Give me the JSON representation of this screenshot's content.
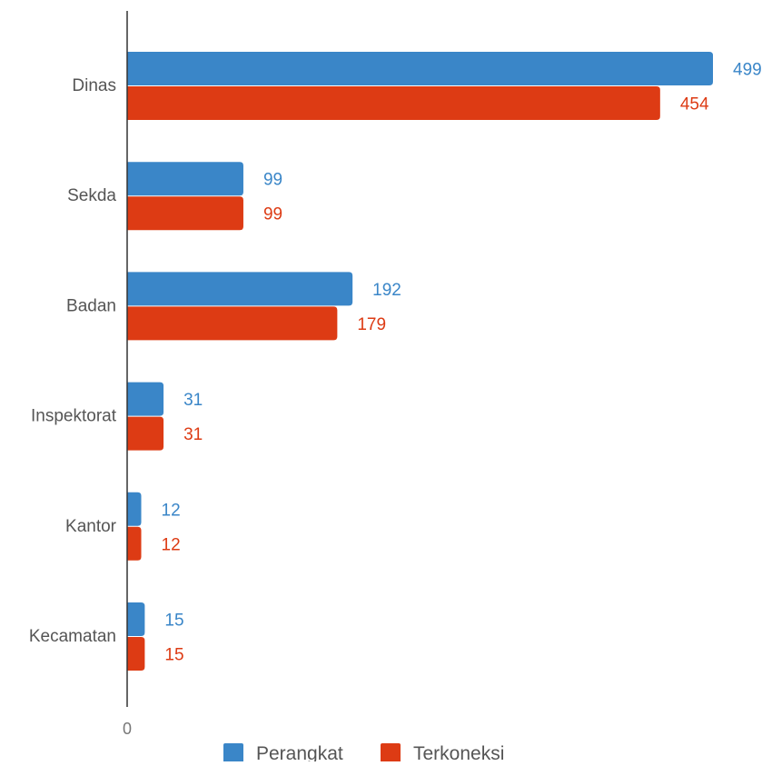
{
  "chart_data": {
    "type": "bar",
    "orientation": "horizontal",
    "categories": [
      "Dinas",
      "Sekda",
      "Badan",
      "Inspektorat",
      "Kantor",
      "Kecamatan"
    ],
    "series": [
      {
        "name": "Perangkat",
        "values": [
          499,
          99,
          192,
          31,
          12,
          15
        ],
        "color": "#3a86c8"
      },
      {
        "name": "Terkoneksi",
        "values": [
          454,
          99,
          179,
          31,
          12,
          15
        ],
        "color": "#dd3b14"
      }
    ],
    "x_ticks": [
      "0"
    ],
    "xlim": [
      0,
      500
    ],
    "grid": false,
    "legend": "bottom",
    "data_labels": true
  }
}
